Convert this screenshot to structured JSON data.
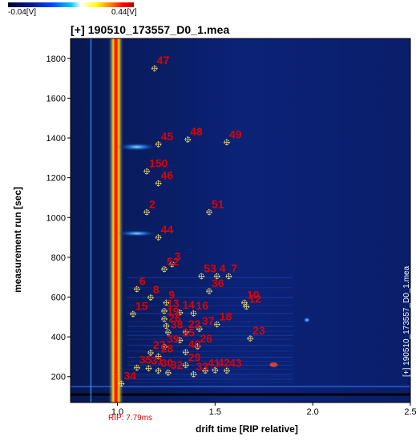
{
  "colorbar": {
    "min_label": "-0.04[V]",
    "max_label": "0.44[V]"
  },
  "title": "[+] 190510_173557_D0_1.mea",
  "side_label": "[+] 190510_173557_D0_1.mea",
  "rip_label": "RIP: 7.79ms",
  "colors": {
    "background": "#0b1f6e",
    "marker_label": "#e10000",
    "marker": "#ffe66a",
    "rip_line": "#ff2a00"
  },
  "chart_data": {
    "type": "heatmap",
    "xlabel": "drift time [RIP relative]",
    "ylabel": "measurement run [sec]",
    "xlim": [
      0.76,
      2.5
    ],
    "ylim": [
      70,
      1900
    ],
    "x_ticks": [
      "1.0",
      "1.5",
      "2.0",
      "2.5"
    ],
    "y_ticks": [
      "200",
      "400",
      "600",
      "800",
      "1000",
      "1200",
      "1400",
      "1600",
      "1800"
    ],
    "markers": [
      {
        "id": "47",
        "x": 1.19,
        "y": 1750
      },
      {
        "id": "45",
        "x": 1.21,
        "y": 1368
      },
      {
        "id": "48",
        "x": 1.36,
        "y": 1392
      },
      {
        "id": "49",
        "x": 1.56,
        "y": 1378
      },
      {
        "id": "150",
        "x": 1.15,
        "y": 1232
      },
      {
        "id": "46",
        "x": 1.21,
        "y": 1172
      },
      {
        "id": "2",
        "x": 1.15,
        "y": 1027
      },
      {
        "id": "51",
        "x": 1.47,
        "y": 1027
      },
      {
        "id": "44",
        "x": 1.21,
        "y": 900
      },
      {
        "id": "3",
        "x": 1.28,
        "y": 765
      },
      {
        "id": "52",
        "x": 1.24,
        "y": 740
      },
      {
        "id": "53",
        "x": 1.43,
        "y": 705
      },
      {
        "id": "4",
        "x": 1.51,
        "y": 705
      },
      {
        "id": "7",
        "x": 1.57,
        "y": 705
      },
      {
        "id": "6",
        "x": 1.1,
        "y": 640
      },
      {
        "id": "36",
        "x": 1.47,
        "y": 630
      },
      {
        "id": "8",
        "x": 1.17,
        "y": 598
      },
      {
        "id": "9",
        "x": 1.25,
        "y": 572
      },
      {
        "id": "10",
        "x": 1.65,
        "y": 572
      },
      {
        "id": "12",
        "x": 1.66,
        "y": 552
      },
      {
        "id": "13",
        "x": 1.24,
        "y": 530
      },
      {
        "id": "14",
        "x": 1.32,
        "y": 522
      },
      {
        "id": "16",
        "x": 1.39,
        "y": 518
      },
      {
        "id": "15",
        "x": 1.08,
        "y": 515
      },
      {
        "id": "19",
        "x": 1.24,
        "y": 490
      },
      {
        "id": "18",
        "x": 1.51,
        "y": 463
      },
      {
        "id": "26",
        "x": 1.25,
        "y": 455
      },
      {
        "id": "37",
        "x": 1.42,
        "y": 440
      },
      {
        "id": "38",
        "x": 1.26,
        "y": 423
      },
      {
        "id": "22",
        "x": 1.35,
        "y": 425
      },
      {
        "id": "23",
        "x": 1.68,
        "y": 392
      },
      {
        "id": "25",
        "x": 1.32,
        "y": 383
      },
      {
        "id": "26",
        "x": 1.41,
        "y": 352
      },
      {
        "id": "39",
        "x": 1.24,
        "y": 350
      },
      {
        "id": "40",
        "x": 1.35,
        "y": 323
      },
      {
        "id": "27",
        "x": 1.17,
        "y": 320
      },
      {
        "id": "28",
        "x": 1.21,
        "y": 302
      },
      {
        "id": "29",
        "x": 1.35,
        "y": 258
      },
      {
        "id": "35",
        "x": 1.1,
        "y": 245
      },
      {
        "id": "31",
        "x": 1.16,
        "y": 242
      },
      {
        "id": "30",
        "x": 1.21,
        "y": 230
      },
      {
        "id": "32",
        "x": 1.26,
        "y": 220
      },
      {
        "id": "41",
        "x": 1.45,
        "y": 230
      },
      {
        "id": "42",
        "x": 1.5,
        "y": 232
      },
      {
        "id": "43",
        "x": 1.56,
        "y": 230
      },
      {
        "id": "33",
        "x": 1.39,
        "y": 212
      },
      {
        "id": "34",
        "x": 1.02,
        "y": 165
      }
    ]
  }
}
